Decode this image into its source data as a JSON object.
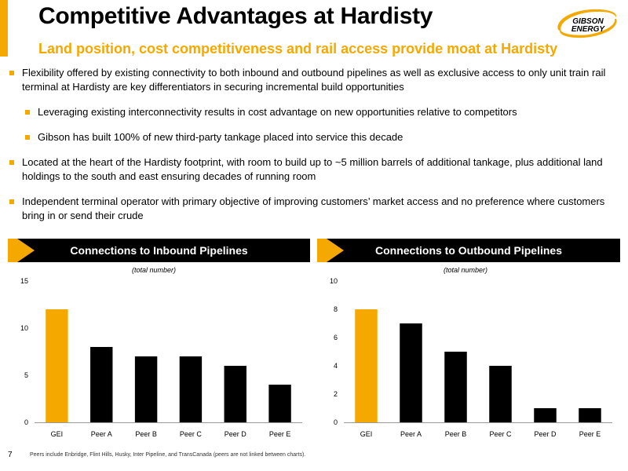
{
  "title": "Competitive Advantages at Hardisty",
  "subtitle": "Land position, cost competitiveness and rail access provide moat at Hardisty",
  "logo_text": [
    "GIBSON",
    "ENERGY"
  ],
  "colors": {
    "accent": "#f5a800",
    "bar_default": "#000000",
    "header_bg": "#000000"
  },
  "bullets": [
    {
      "level": 1,
      "text": "Flexibility offered by existing connectivity to both inbound and outbound pipelines as well as exclusive access to only unit train rail terminal at Hardisty are key differentiators in securing incremental build opportunities"
    },
    {
      "level": 2,
      "text": "Leveraging existing interconnectivity results in cost advantage on new opportunities relative to competitors"
    },
    {
      "level": 2,
      "text": "Gibson has built 100% of new third-party tankage placed into service this decade"
    },
    {
      "level": 1,
      "text": "Located at the heart of the Hardisty footprint, with room to build up to ~5 million barrels of additional tankage, plus additional land holdings to the south and east ensuring decades of running room"
    },
    {
      "level": 1,
      "text": "Independent terminal operator with primary objective of improving customers’ market access and no preference where customers bring in or send their crude"
    }
  ],
  "chart_data": [
    {
      "type": "bar",
      "title": "Connections to Inbound Pipelines",
      "note": "(total number)",
      "categories": [
        "GEI",
        "Peer A",
        "Peer B",
        "Peer C",
        "Peer D",
        "Peer E"
      ],
      "values": [
        12,
        8,
        7,
        7,
        6,
        4
      ],
      "highlight_index": 0,
      "ylim": [
        0,
        15
      ],
      "yticks": [
        0,
        5,
        10,
        15
      ],
      "grid": false
    },
    {
      "type": "bar",
      "title": "Connections to Outbound Pipelines",
      "note": "(total number)",
      "categories": [
        "GEI",
        "Peer A",
        "Peer B",
        "Peer C",
        "Peer D",
        "Peer E"
      ],
      "values": [
        8,
        7,
        5,
        4,
        1,
        1
      ],
      "highlight_index": 0,
      "ylim": [
        0,
        10
      ],
      "yticks": [
        0,
        2,
        4,
        6,
        8,
        10
      ],
      "grid": false
    }
  ],
  "footer": {
    "page_number": "7",
    "note": "Peers include Enbridge, Flint Hills, Husky, Inter Pipeline, and TransCanada (peers are not linked between charts)."
  }
}
